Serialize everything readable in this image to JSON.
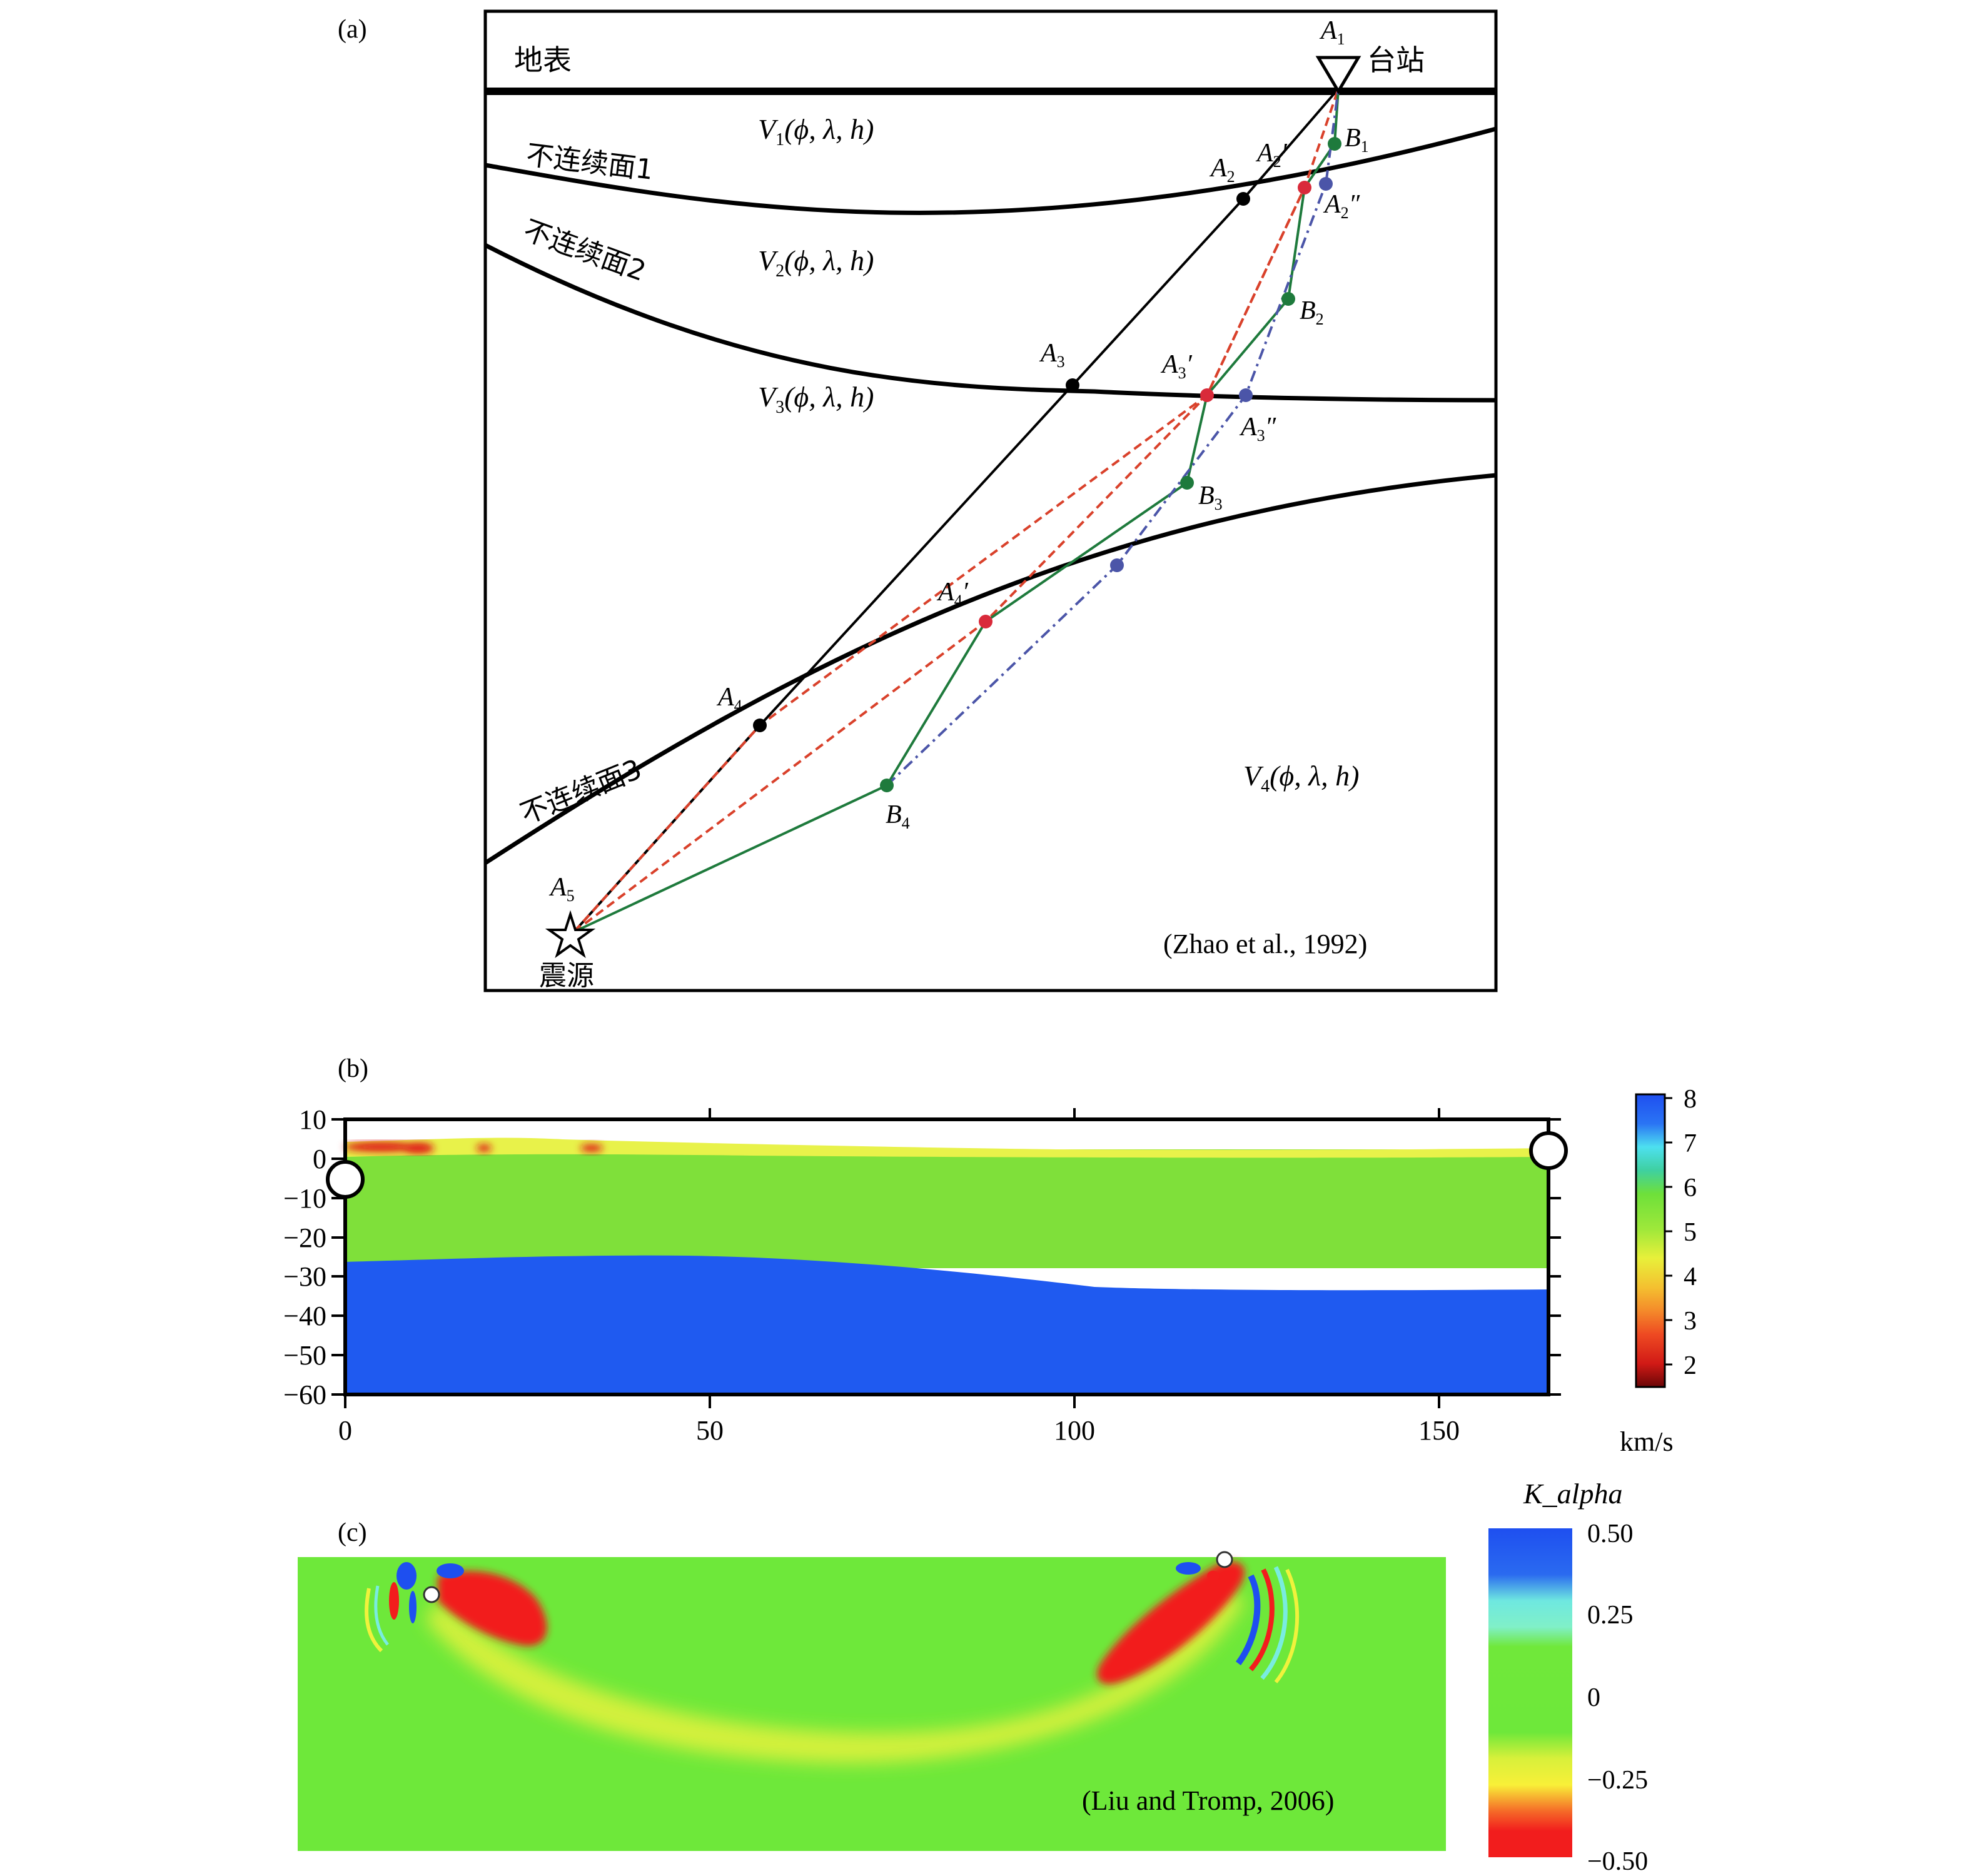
{
  "panel_a": {
    "panel_label": "(a)",
    "surface_label": "地表",
    "station_label": "台站",
    "source_label": "震源",
    "interfaces": [
      "不连续面1",
      "不连续面2",
      "不连续面3"
    ],
    "velocity_layers": [
      {
        "name": "V",
        "sub": "1",
        "args": "(ϕ, λ, h)"
      },
      {
        "name": "V",
        "sub": "2",
        "args": "(ϕ, λ, h)"
      },
      {
        "name": "V",
        "sub": "3",
        "args": "(ϕ, λ, h)"
      },
      {
        "name": "V",
        "sub": "4",
        "args": "(ϕ, λ, h)"
      }
    ],
    "points": {
      "A1": {
        "name": "A",
        "sub": "1",
        "mark": ""
      },
      "A2": {
        "name": "A",
        "sub": "2",
        "mark": ""
      },
      "A3": {
        "name": "A",
        "sub": "3",
        "mark": ""
      },
      "A4": {
        "name": "A",
        "sub": "4",
        "mark": ""
      },
      "A5": {
        "name": "A",
        "sub": "5",
        "mark": ""
      },
      "A2p": {
        "name": "A",
        "sub": "2",
        "mark": "′"
      },
      "A3p": {
        "name": "A",
        "sub": "3",
        "mark": "′"
      },
      "A4p": {
        "name": "A",
        "sub": "4",
        "mark": "′"
      },
      "A2pp": {
        "name": "A",
        "sub": "2",
        "mark": "″"
      },
      "A3pp": {
        "name": "A",
        "sub": "3",
        "mark": "″"
      },
      "B1": {
        "name": "B",
        "sub": "1",
        "mark": ""
      },
      "B2": {
        "name": "B",
        "sub": "2",
        "mark": ""
      },
      "B3": {
        "name": "B",
        "sub": "3",
        "mark": ""
      },
      "B4": {
        "name": "B",
        "sub": "4",
        "mark": ""
      }
    },
    "citation": "(Zhao et al., 1992)",
    "colors": {
      "straight_ray": "#000000",
      "red_ray": "#d9412b",
      "green_ray": "#1e7a3c",
      "blue_ray": "#4b55a8"
    }
  },
  "panel_b": {
    "panel_label": "(b)",
    "y_ticks": [
      "10",
      "0",
      "−10",
      "−20",
      "−30",
      "−40",
      "−50",
      "−60"
    ],
    "x_ticks": [
      "0",
      "50",
      "100",
      "150"
    ],
    "colorbar_ticks": [
      "8",
      "7",
      "6",
      "5",
      "4",
      "3",
      "2"
    ],
    "colorbar_unit": "km/s",
    "colors": {
      "crust": "#7fe03a",
      "mantle": "#1f5af0",
      "low": "#e01818",
      "surface": "#e8f24a"
    }
  },
  "panel_c": {
    "panel_label": "(c)",
    "colorbar_title": "K_alpha",
    "colorbar_ticks": [
      "0.50",
      "0.25",
      "0",
      "−0.25",
      "−0.50"
    ],
    "citation": "(Liu and Tromp, 2006)",
    "colors": {
      "background": "#6ee83a",
      "positive": "#1e4ff0",
      "negative": "#f21d1d",
      "yellow": "#f0f23c",
      "cyan": "#79ece0"
    }
  }
}
